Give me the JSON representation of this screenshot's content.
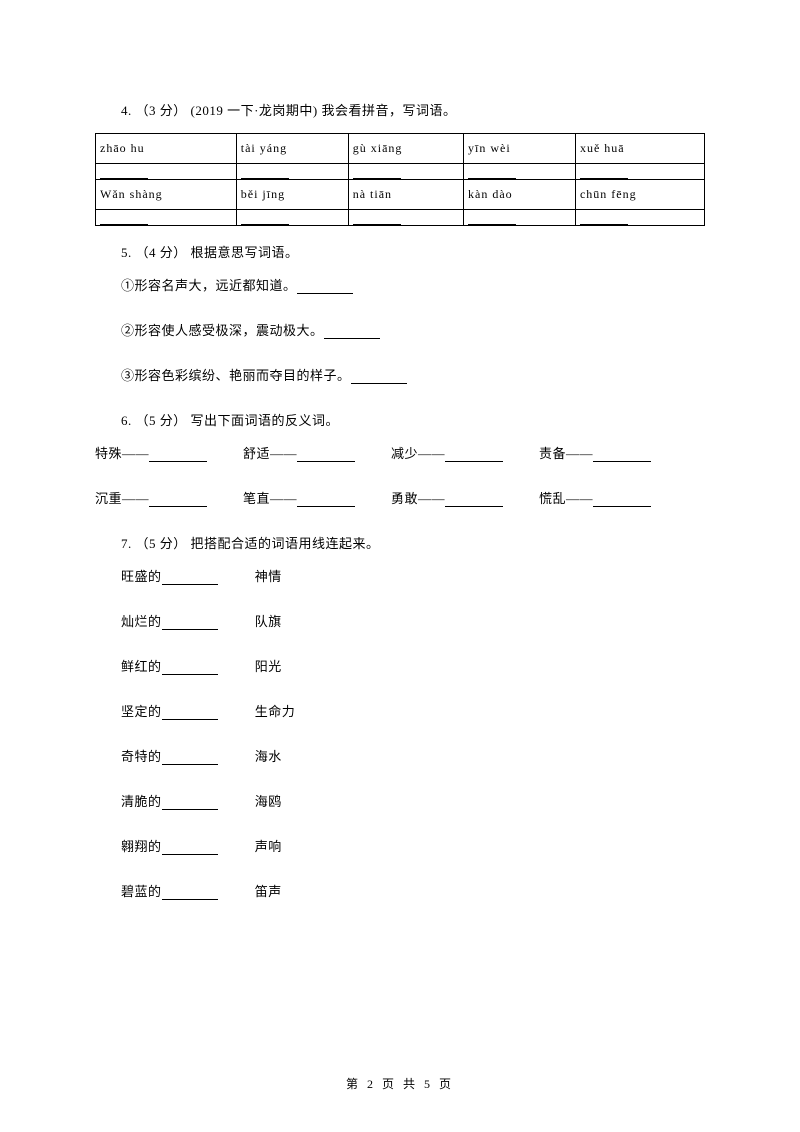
{
  "q4": {
    "header": "4. （3 分） (2019 一下·龙岗期中) 我会看拼音，写词语。",
    "table": {
      "row1": [
        "zhāo  hu",
        "tài  yáng",
        "gù  xiāng",
        "yīn  wèi",
        "xuě  huā"
      ],
      "row3": [
        "Wǎn  shàng",
        "běi  jīng",
        "nà  tiān",
        "kàn  dào",
        "chūn  fēng"
      ]
    }
  },
  "q5": {
    "header": "5. （4 分） 根据意思写词语。",
    "items": [
      "①形容名声大，远近都知道。",
      "②形容使人感受极深，震动极大。",
      "③形容色彩缤纷、艳丽而夺目的样子。"
    ]
  },
  "q6": {
    "header": "6. （5 分） 写出下面词语的反义词。",
    "row1": [
      "特殊——",
      "舒适——",
      "减少——",
      "责备——"
    ],
    "row2": [
      "沉重——",
      "笔直——",
      "勇敢——",
      "慌乱——"
    ]
  },
  "q7": {
    "header": "7. （5 分） 把搭配合适的词语用线连起来。",
    "pairs": [
      {
        "left": "旺盛的",
        "right": "神情"
      },
      {
        "left": "灿烂的",
        "right": "队旗"
      },
      {
        "left": "鲜红的",
        "right": "阳光"
      },
      {
        "left": "坚定的",
        "right": "生命力"
      },
      {
        "left": "奇特的",
        "right": "海水"
      },
      {
        "left": "清脆的",
        "right": "海鸥"
      },
      {
        "left": "翱翔的",
        "right": "声响"
      },
      {
        "left": "碧蓝的",
        "right": "笛声"
      }
    ]
  },
  "footer": "第 2 页 共 5 页"
}
